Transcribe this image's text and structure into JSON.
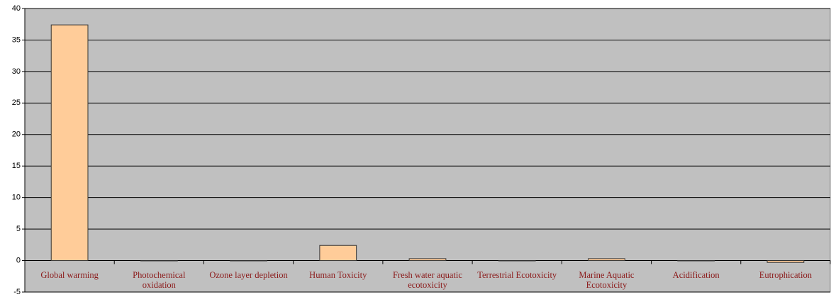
{
  "chart_data": {
    "type": "bar",
    "categories": [
      "Global warming",
      "Photochemical oxidation",
      "Ozone layer depletion",
      "Human Toxicity",
      "Fresh water aquatic ecotoxicity",
      "Terrestrial Ecotoxicity",
      "Marine Aquatic Ecotoxicity",
      "Acidification",
      "Eutrophication"
    ],
    "values": [
      37.4,
      0,
      0,
      2.4,
      0.3,
      0,
      0.3,
      0,
      -0.3
    ],
    "color": "#ffcc99",
    "ylim": [
      -5,
      40
    ],
    "yticks": [
      -5,
      0,
      5,
      10,
      15,
      20,
      25,
      30,
      35,
      40
    ],
    "grid": true
  }
}
